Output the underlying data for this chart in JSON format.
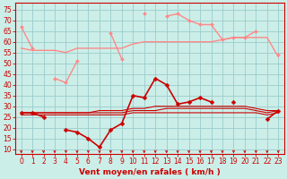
{
  "bg_color": "#cceee8",
  "grid_color": "#99cccc",
  "x": [
    0,
    1,
    2,
    3,
    4,
    5,
    6,
    7,
    8,
    9,
    10,
    11,
    12,
    13,
    14,
    15,
    16,
    17,
    18,
    19,
    20,
    21,
    22,
    23
  ],
  "series": [
    {
      "y": [
        67,
        57,
        null,
        43,
        41,
        51,
        null,
        null,
        64,
        52,
        null,
        73,
        null,
        72,
        73,
        70,
        68,
        68,
        61,
        62,
        62,
        65,
        null,
        54
      ],
      "color": "#ff8888",
      "lw": 1.0,
      "marker": "D",
      "ms": 2.0,
      "zorder": 3
    },
    {
      "y": [
        57,
        56,
        56,
        56,
        55,
        57,
        57,
        57,
        57,
        57,
        59,
        60,
        60,
        60,
        60,
        60,
        60,
        60,
        61,
        62,
        62,
        62,
        62,
        53
      ],
      "color": "#ff8888",
      "lw": 1.0,
      "marker": null,
      "ms": 0,
      "zorder": 2
    },
    {
      "y": [
        null,
        null,
        null,
        null,
        null,
        null,
        null,
        null,
        null,
        null,
        null,
        null,
        null,
        null,
        null,
        null,
        null,
        null,
        null,
        null,
        null,
        null,
        null,
        null
      ],
      "color": "#ffaaaa",
      "lw": 1.0,
      "marker": null,
      "ms": 0,
      "zorder": 2
    },
    {
      "y": [
        27,
        27,
        25,
        null,
        19,
        18,
        15,
        11,
        19,
        22,
        35,
        34,
        43,
        40,
        31,
        32,
        34,
        32,
        null,
        32,
        null,
        null,
        24,
        28
      ],
      "color": "#cc0000",
      "lw": 1.2,
      "marker": "D",
      "ms": 2.5,
      "zorder": 5
    },
    {
      "y": [
        26,
        26,
        26,
        26,
        26,
        26,
        26,
        26,
        26,
        26,
        27,
        27,
        27,
        27,
        27,
        27,
        27,
        27,
        27,
        27,
        27,
        27,
        26,
        27
      ],
      "color": "#cc0000",
      "lw": 0.8,
      "marker": null,
      "ms": 0,
      "zorder": 4
    },
    {
      "y": [
        27,
        27,
        27,
        27,
        27,
        27,
        27,
        27,
        27,
        27,
        28,
        28,
        28,
        29,
        29,
        29,
        29,
        29,
        29,
        29,
        29,
        28,
        27,
        28
      ],
      "color": "#cc0000",
      "lw": 0.8,
      "marker": null,
      "ms": 0,
      "zorder": 4
    },
    {
      "y": [
        27,
        27,
        27,
        27,
        27,
        27,
        27,
        28,
        28,
        28,
        29,
        29,
        30,
        30,
        30,
        30,
        30,
        30,
        30,
        30,
        30,
        29,
        28,
        28
      ],
      "color": "#cc0000",
      "lw": 0.8,
      "marker": null,
      "ms": 0,
      "zorder": 4
    }
  ],
  "yticks": [
    10,
    15,
    20,
    25,
    30,
    35,
    40,
    45,
    50,
    55,
    60,
    65,
    70,
    75
  ],
  "ylim": [
    8,
    78
  ],
  "xlim": [
    -0.5,
    23.5
  ],
  "xlabel": "Vent moyen/en rafales ( km/h )",
  "xlabel_color": "#cc0000",
  "xlabel_fontsize": 6.5,
  "tick_color": "#cc0000",
  "tick_fontsize": 5.5,
  "arrow_color": "#cc0000",
  "spine_color": "#cc0000"
}
